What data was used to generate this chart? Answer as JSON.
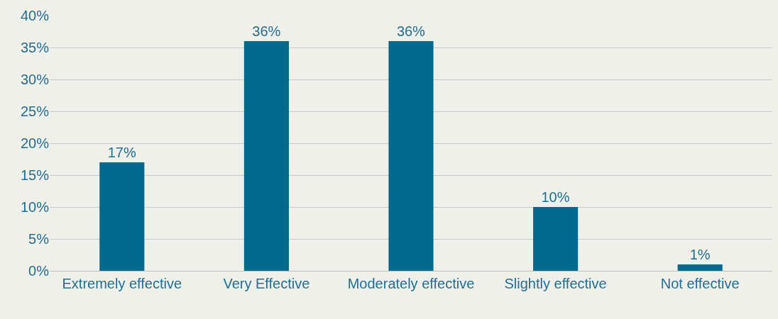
{
  "chart_data": {
    "type": "bar",
    "categories": [
      "Extremely effective",
      "Very Effective",
      "Moderately effective",
      "Slightly effective",
      "Not effective"
    ],
    "values": [
      17,
      36,
      36,
      10,
      1
    ],
    "value_labels": [
      "17%",
      "36%",
      "36%",
      "10%",
      "1%"
    ],
    "color": "#006a8e",
    "ylim": [
      0,
      40
    ],
    "yticks": [
      {
        "value": 0,
        "label": "0%"
      },
      {
        "value": 5,
        "label": "5%"
      },
      {
        "value": 10,
        "label": "10%"
      },
      {
        "value": 15,
        "label": "15%"
      },
      {
        "value": 20,
        "label": "20%"
      },
      {
        "value": 25,
        "label": "25%"
      },
      {
        "value": 30,
        "label": "30%"
      },
      {
        "value": 35,
        "label": "35%"
      },
      {
        "value": 40,
        "label": "40%"
      }
    ],
    "grid": "y"
  }
}
